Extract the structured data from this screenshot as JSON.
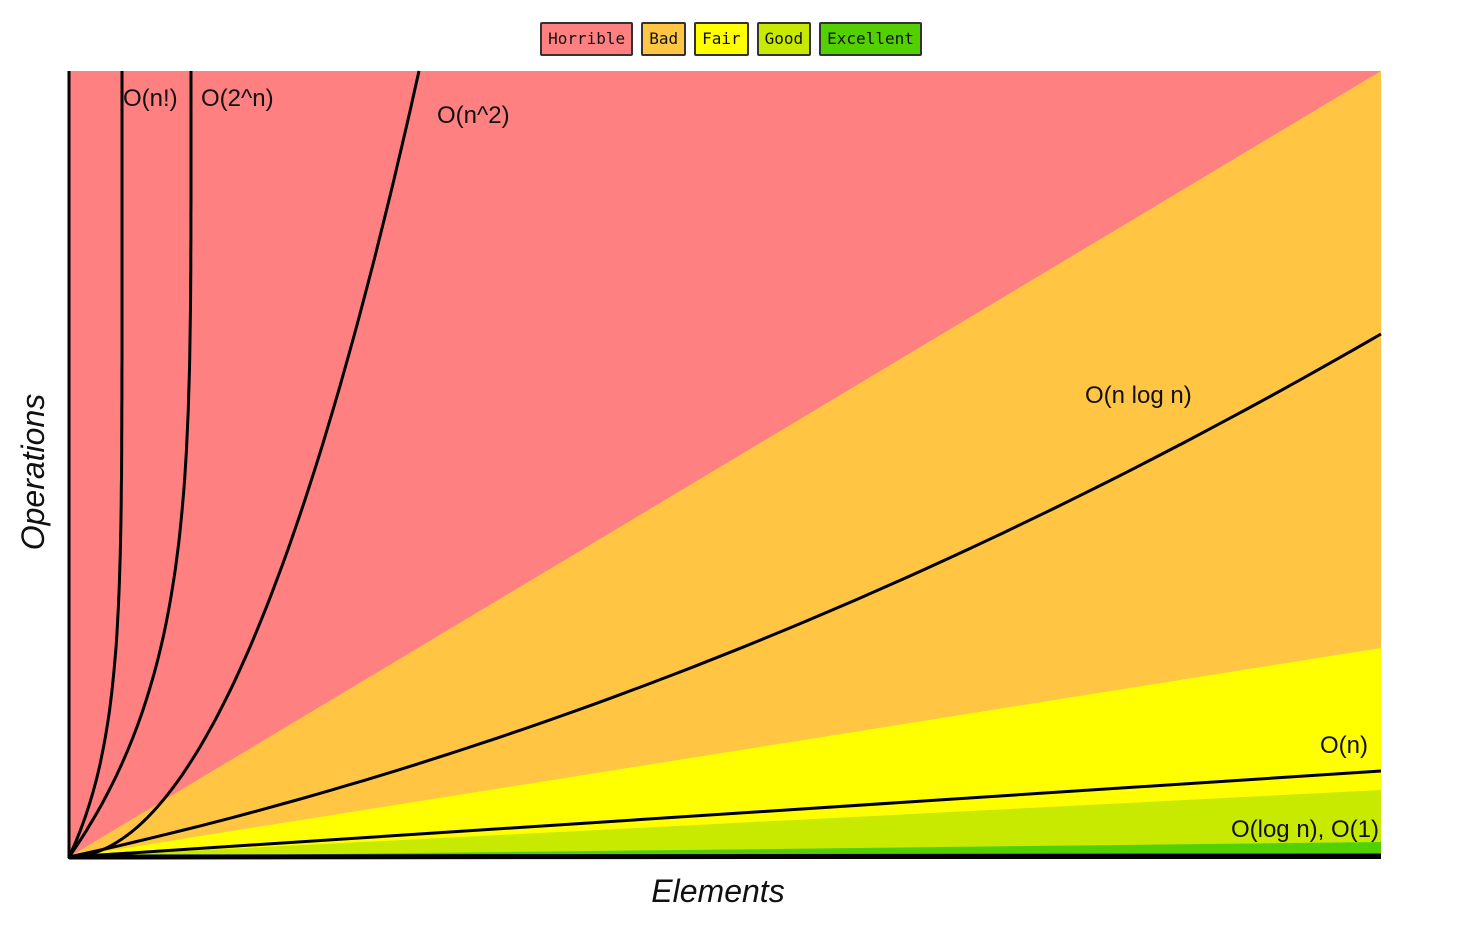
{
  "chart_data": {
    "type": "line",
    "title": "",
    "xlabel": "Elements",
    "ylabel": "Operations",
    "legend": {
      "placement": "top-center",
      "entries": [
        {
          "label": "Horrible",
          "color": "#ff8080"
        },
        {
          "label": "Bad",
          "color": "#ffc543"
        },
        {
          "label": "Fair",
          "color": "#ffff00"
        },
        {
          "label": "Good",
          "color": "#c8ea00"
        },
        {
          "label": "Excellent",
          "color": "#53d000"
        }
      ]
    },
    "grid": false,
    "xlim": [
      0,
      100
    ],
    "ylim": [
      0,
      100
    ],
    "regions": [
      {
        "name": "Horrible",
        "color": "#ff8080"
      },
      {
        "name": "Bad",
        "color": "#ffc543"
      },
      {
        "name": "Fair",
        "color": "#ffff00"
      },
      {
        "name": "Good",
        "color": "#c8ea00"
      },
      {
        "name": "Excellent",
        "color": "#53d000"
      }
    ],
    "series": [
      {
        "name": "O(n!)",
        "complexity": "factorial"
      },
      {
        "name": "O(2^n)",
        "complexity": "exponential"
      },
      {
        "name": "O(n^2)",
        "complexity": "quadratic"
      },
      {
        "name": "O(n log n)",
        "complexity": "linearithmic"
      },
      {
        "name": "O(n)",
        "complexity": "linear"
      },
      {
        "name": "O(log n), O(1)",
        "complexity": "logarithmic-constant"
      }
    ]
  }
}
